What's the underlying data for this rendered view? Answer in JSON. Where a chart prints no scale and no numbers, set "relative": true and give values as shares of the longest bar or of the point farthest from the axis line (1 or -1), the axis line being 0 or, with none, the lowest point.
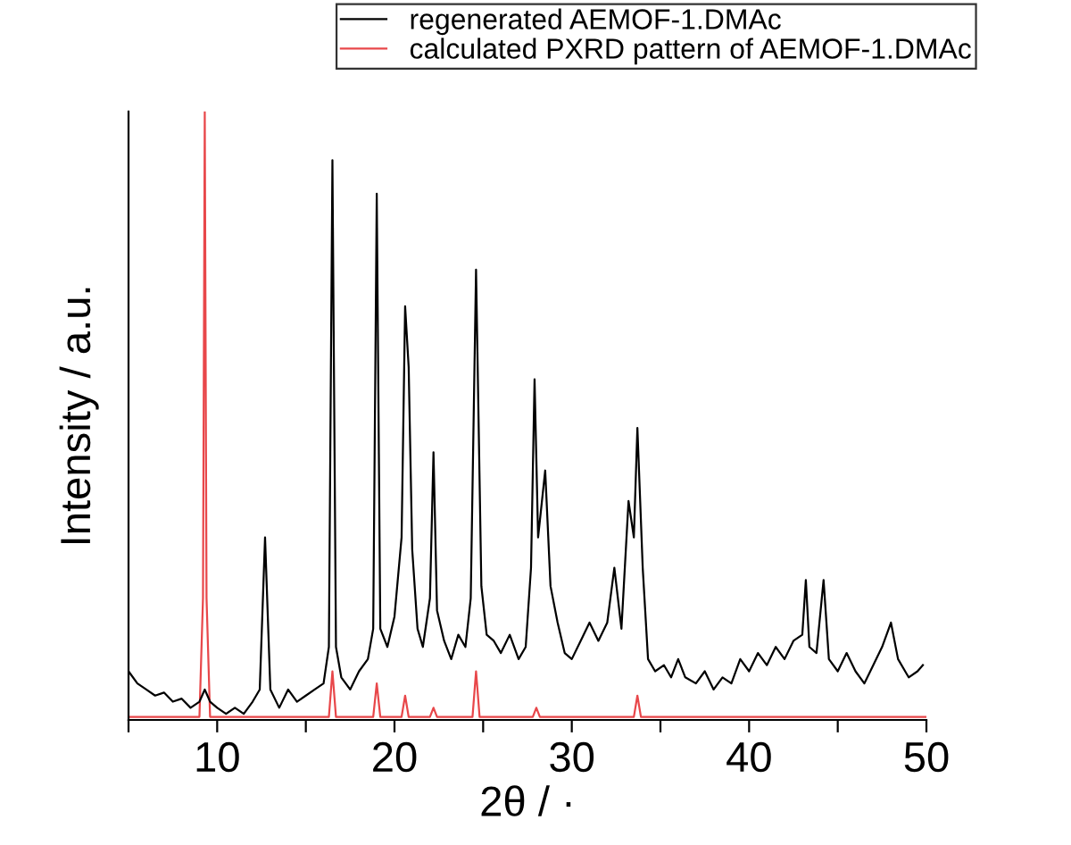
{
  "chart_data": {
    "type": "line",
    "relative": true,
    "xlabel": "2θ / ·",
    "ylabel": "Intensity / a.u.",
    "xlim": [
      5,
      50
    ],
    "xticks": [
      {
        "value": 5,
        "label": null
      },
      10,
      {
        "value": 15,
        "label": null
      },
      20,
      {
        "value": 25,
        "label": null
      },
      30,
      {
        "value": 35,
        "label": null
      },
      40,
      {
        "value": 45,
        "label": null
      },
      50
    ],
    "legend": "top right",
    "grid": false,
    "tick_labels": "x",
    "series": [
      {
        "name": "regenerated AEMOF-1.DMAc",
        "color": "#000000",
        "x": [
          5.0,
          5.5,
          6,
          6.5,
          7,
          7.5,
          8,
          8.5,
          9,
          9.3,
          9.6,
          10,
          10.5,
          11,
          11.5,
          12,
          12.4,
          12.7,
          13.0,
          13.5,
          14,
          14.5,
          15,
          15.5,
          16,
          16.3,
          16.5,
          16.7,
          17,
          17.5,
          18,
          18.5,
          18.8,
          19.0,
          19.2,
          19.6,
          20.0,
          20.4,
          20.6,
          20.8,
          21.0,
          21.3,
          21.6,
          22.0,
          22.2,
          22.4,
          22.8,
          23.2,
          23.6,
          24.0,
          24.3,
          24.6,
          24.9,
          25.2,
          25.6,
          26,
          26.5,
          27,
          27.4,
          27.7,
          27.9,
          28.1,
          28.5,
          28.8,
          29.2,
          29.6,
          30,
          30.5,
          31,
          31.5,
          32,
          32.4,
          32.8,
          33.2,
          33.5,
          33.7,
          34.0,
          34.3,
          34.7,
          35.2,
          35.6,
          36,
          36.4,
          37,
          37.5,
          38,
          38.5,
          39,
          39.5,
          40,
          40.5,
          41,
          41.5,
          42,
          42.5,
          43,
          43.2,
          43.4,
          43.8,
          44.2,
          44.5,
          45,
          45.5,
          46,
          46.5,
          47,
          47.5,
          48,
          48.4,
          49,
          49.5,
          49.8
        ],
        "values": [
          0.08,
          0.06,
          0.05,
          0.04,
          0.045,
          0.03,
          0.035,
          0.02,
          0.03,
          0.05,
          0.03,
          0.02,
          0.01,
          0.02,
          0.01,
          0.03,
          0.05,
          0.3,
          0.05,
          0.02,
          0.05,
          0.03,
          0.04,
          0.05,
          0.06,
          0.12,
          0.92,
          0.12,
          0.07,
          0.05,
          0.08,
          0.1,
          0.15,
          0.865,
          0.15,
          0.12,
          0.17,
          0.3,
          0.68,
          0.58,
          0.28,
          0.15,
          0.12,
          0.2,
          0.44,
          0.18,
          0.13,
          0.1,
          0.14,
          0.12,
          0.2,
          0.74,
          0.22,
          0.14,
          0.13,
          0.11,
          0.14,
          0.1,
          0.12,
          0.25,
          0.56,
          0.3,
          0.41,
          0.22,
          0.16,
          0.11,
          0.1,
          0.13,
          0.16,
          0.13,
          0.16,
          0.25,
          0.15,
          0.36,
          0.3,
          0.48,
          0.25,
          0.1,
          0.08,
          0.09,
          0.07,
          0.1,
          0.07,
          0.06,
          0.08,
          0.05,
          0.07,
          0.06,
          0.1,
          0.08,
          0.11,
          0.09,
          0.12,
          0.1,
          0.13,
          0.14,
          0.23,
          0.12,
          0.11,
          0.23,
          0.1,
          0.08,
          0.11,
          0.08,
          0.06,
          0.09,
          0.12,
          0.16,
          0.1,
          0.07,
          0.08,
          0.09
        ]
      },
      {
        "name": "calculated PXRD pattern of AEMOF-1.DMAc",
        "color": "#e8474a",
        "x": [
          5,
          9.0,
          9.2,
          9.3,
          9.4,
          9.6,
          16.3,
          16.5,
          16.7,
          18.8,
          19.0,
          19.2,
          20.4,
          20.6,
          20.8,
          22.0,
          22.2,
          22.4,
          24.4,
          24.6,
          24.8,
          27.8,
          28.0,
          28.2,
          33.5,
          33.7,
          33.9,
          50
        ],
        "values": [
          0.005,
          0.005,
          0.2,
          1.0,
          0.2,
          0.005,
          0.005,
          0.08,
          0.005,
          0.005,
          0.06,
          0.005,
          0.005,
          0.04,
          0.005,
          0.005,
          0.02,
          0.005,
          0.005,
          0.08,
          0.005,
          0.005,
          0.02,
          0.005,
          0.005,
          0.04,
          0.005,
          0.005
        ]
      }
    ]
  }
}
